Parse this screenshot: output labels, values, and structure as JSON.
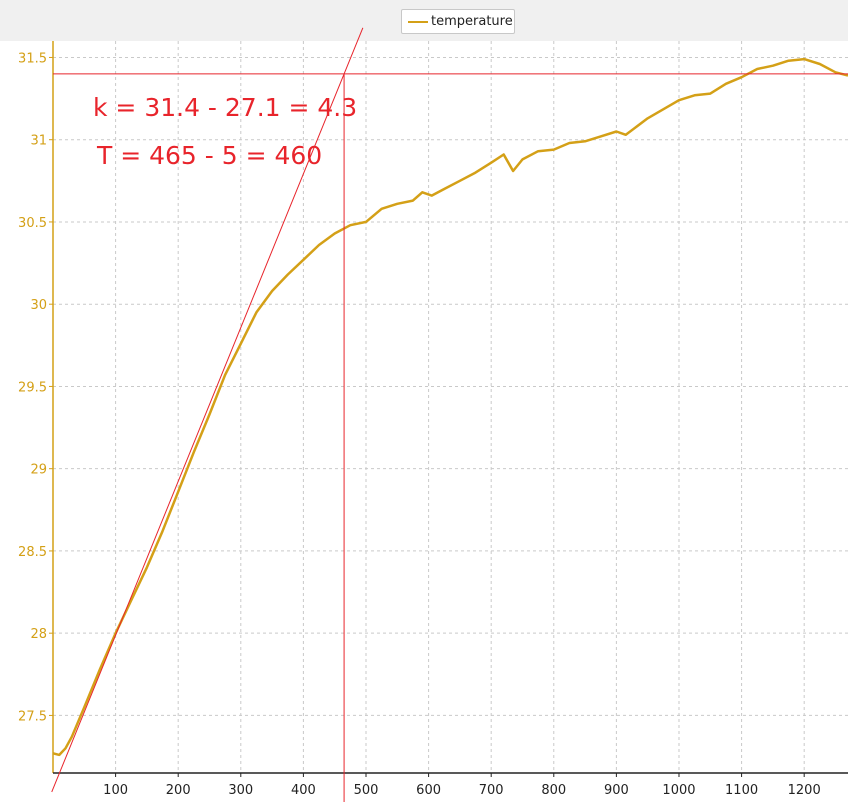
{
  "chart_data": {
    "type": "line",
    "title": "",
    "xlabel": "",
    "ylabel": "",
    "xlim": [
      0,
      1270
    ],
    "ylim": [
      27.15,
      31.6
    ],
    "xticks": [
      100,
      200,
      300,
      400,
      500,
      600,
      700,
      800,
      900,
      1000,
      1100,
      1200
    ],
    "yticks": [
      27.5,
      28,
      28.5,
      29,
      29.5,
      30,
      30.5,
      31,
      31.5
    ],
    "grid": true,
    "legend": {
      "placement": "top-center",
      "entries": [
        "temperature"
      ]
    },
    "colors": {
      "series": "#d4a017",
      "annotation": "#e8242b",
      "ytick": "#d4a017"
    },
    "series": [
      {
        "name": "temperature",
        "x": [
          0,
          10,
          20,
          30,
          50,
          75,
          100,
          125,
          150,
          175,
          200,
          225,
          250,
          275,
          300,
          325,
          350,
          375,
          400,
          425,
          450,
          475,
          500,
          525,
          550,
          575,
          590,
          605,
          625,
          650,
          675,
          700,
          720,
          735,
          750,
          775,
          800,
          825,
          850,
          875,
          900,
          915,
          950,
          1000,
          1025,
          1050,
          1075,
          1100,
          1125,
          1150,
          1175,
          1200,
          1225,
          1250,
          1270
        ],
        "y": [
          27.27,
          27.26,
          27.3,
          27.37,
          27.55,
          27.78,
          28.0,
          28.2,
          28.4,
          28.62,
          28.86,
          29.1,
          29.33,
          29.57,
          29.76,
          29.95,
          30.08,
          30.18,
          30.27,
          30.36,
          30.43,
          30.48,
          30.5,
          30.58,
          30.61,
          30.63,
          30.68,
          30.66,
          30.7,
          30.75,
          30.8,
          30.86,
          30.91,
          30.81,
          30.88,
          30.93,
          30.94,
          30.98,
          30.99,
          31.02,
          31.05,
          31.03,
          31.13,
          31.24,
          31.27,
          31.28,
          31.34,
          31.38,
          31.43,
          31.45,
          31.48,
          31.49,
          31.46,
          31.41,
          31.39
        ]
      }
    ],
    "reference_lines": [
      {
        "kind": "horizontal",
        "y": 31.4
      },
      {
        "kind": "vertical",
        "x": 465
      },
      {
        "kind": "tangent",
        "x1": 5,
        "y1": 27.1,
        "x2": 465,
        "y2": 31.4
      }
    ],
    "annotations": [
      "k = 31.4 - 27.1 = 4.3",
      "T = 465 - 5 = 460"
    ]
  }
}
